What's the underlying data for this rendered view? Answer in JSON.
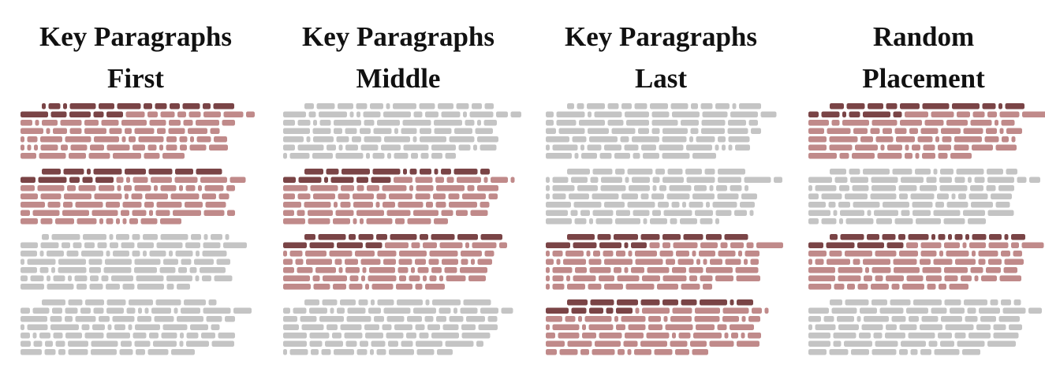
{
  "colors": {
    "key_heading": "#7a4446",
    "key_body": "#c08a8a",
    "distractor": "#c4c4c4",
    "title_text": "#111111"
  },
  "panels": [
    {
      "title_line1": "Key Paragraphs",
      "title_line2": "First",
      "paragraphs": [
        "key",
        "key",
        "distractor",
        "distractor"
      ]
    },
    {
      "title_line1": "Key Paragraphs",
      "title_line2": "Middle",
      "paragraphs": [
        "distractor",
        "key",
        "key",
        "distractor"
      ]
    },
    {
      "title_line1": "Key Paragraphs",
      "title_line2": "Last",
      "paragraphs": [
        "distractor",
        "distractor",
        "key",
        "key"
      ]
    },
    {
      "title_line1": "Random",
      "title_line2": "Placement",
      "paragraphs": [
        "key",
        "distractor",
        "key",
        "distractor"
      ]
    }
  ]
}
